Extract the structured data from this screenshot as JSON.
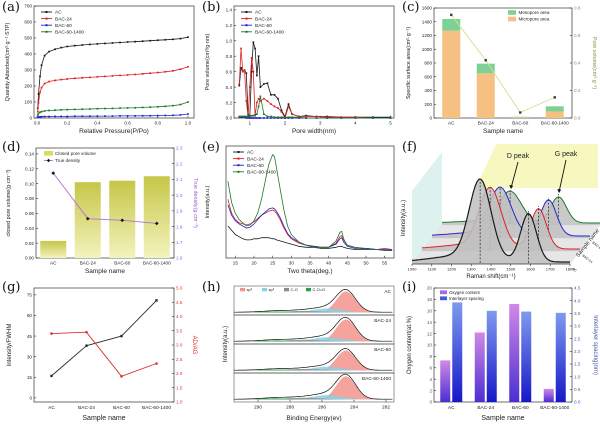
{
  "chart_data": [
    {
      "id": "a",
      "label": "(a)",
      "kind": "line",
      "type": "line",
      "xlabel": "Relative Pressure(P/Po)",
      "ylabel": "Quantity Adsorbed(cm³·g⁻¹·STP)",
      "xlim": [
        -0.02,
        1.04
      ],
      "ylim": [
        0,
        700
      ],
      "xticks": [
        0.0,
        0.2,
        0.4,
        0.6,
        0.8,
        1.0
      ],
      "yticks": [
        0,
        100,
        200,
        300,
        400,
        500,
        600,
        700
      ],
      "xdec": 1,
      "ydec": 0,
      "show_yticks": true,
      "markers": true,
      "layout": {
        "ml": 34,
        "mr": 6
      },
      "x": [
        0.005,
        0.01,
        0.02,
        0.03,
        0.05,
        0.08,
        0.12,
        0.16,
        0.2,
        0.25,
        0.3,
        0.35,
        0.4,
        0.45,
        0.5,
        0.55,
        0.6,
        0.65,
        0.7,
        0.75,
        0.8,
        0.85,
        0.9,
        0.95,
        1.0
      ],
      "series": [
        {
          "name": "AC",
          "color": "#1a1a1a",
          "y": [
            60,
            150,
            260,
            330,
            390,
            415,
            430,
            440,
            447,
            452,
            456,
            460,
            463,
            466,
            469,
            472,
            475,
            477,
            480,
            483,
            486,
            489,
            492,
            496,
            505
          ]
        },
        {
          "name": "BAC-24",
          "color": "#e02020",
          "y": [
            40,
            95,
            160,
            190,
            215,
            228,
            235,
            240,
            244,
            248,
            251,
            254,
            257,
            260,
            263,
            266,
            269,
            272,
            276,
            280,
            284,
            289,
            295,
            305,
            320
          ]
        },
        {
          "name": "BAC-60",
          "color": "#2020cc",
          "y": [
            4,
            6,
            7,
            8,
            9,
            9,
            10,
            10,
            10,
            11,
            11,
            11,
            12,
            12,
            12,
            13,
            13,
            13,
            14,
            14,
            15,
            16,
            17,
            19,
            25
          ]
        },
        {
          "name": "BAC-60-1400",
          "color": "#1a7a2a",
          "y": [
            18,
            28,
            36,
            40,
            44,
            47,
            49,
            51,
            52,
            54,
            55,
            56,
            58,
            59,
            60,
            62,
            63,
            64,
            66,
            68,
            70,
            73,
            77,
            84,
            100
          ]
        }
      ]
    },
    {
      "id": "b",
      "label": "(b)",
      "kind": "line",
      "type": "line",
      "xlabel": "Pore width(nm)",
      "ylabel": "Pore volume(cm³/g·nm)",
      "xlim": [
        0.55,
        5.1
      ],
      "ylim": [
        0,
        1.45
      ],
      "xticks": [
        1,
        2,
        3,
        4,
        5
      ],
      "yticks": [
        0.0,
        0.2,
        0.4,
        0.6,
        0.8,
        1.0,
        1.2,
        1.4
      ],
      "xdec": 0,
      "ydec": 1,
      "show_yticks": true,
      "markers": true,
      "layout": {
        "ml": 34,
        "mr": 6
      },
      "x": [
        0.7,
        0.75,
        0.8,
        0.85,
        0.9,
        0.95,
        1.0,
        1.05,
        1.1,
        1.15,
        1.2,
        1.25,
        1.3,
        1.4,
        1.5,
        1.6,
        1.7,
        1.8,
        1.9,
        2.0,
        2.1,
        2.2,
        2.4,
        2.6,
        2.9,
        3.2,
        3.6,
        4.0,
        4.5,
        5.0
      ],
      "series": [
        {
          "name": "AC",
          "color": "#1a1a1a",
          "y": [
            0.42,
            0.65,
            0.6,
            0.62,
            0.58,
            0.05,
            0.02,
            0.6,
            0.98,
            0.9,
            0.55,
            0.8,
            0.4,
            0.44,
            0.45,
            0.3,
            0.3,
            0.25,
            0.1,
            0.02,
            0.18,
            0.05,
            0.02,
            0.03,
            0.02,
            0.02,
            0.01,
            0.01,
            0.01,
            0.01
          ]
        },
        {
          "name": "BAC-24",
          "color": "#e02020",
          "y": [
            0.44,
            0.9,
            0.6,
            0.62,
            0.22,
            0.02,
            0.4,
            0.78,
            0.6,
            0.03,
            0.2,
            0.25,
            0.22,
            0.25,
            0.22,
            0.18,
            0.15,
            0.13,
            0.08,
            0.0,
            0.15,
            0.05,
            0.02,
            0.02,
            0.02,
            0.01,
            0.01,
            0.01,
            0.0,
            0.0
          ]
        },
        {
          "name": "BAC-60",
          "color": "#2020cc",
          "y": [
            0.01,
            0.01,
            0.01,
            0.01,
            0.0,
            0.0,
            0.0,
            0.0,
            0.0,
            0.0,
            0.0,
            0.0,
            0.0,
            0.0,
            0.0,
            0.0,
            0.0,
            0.0,
            0.0,
            0.0,
            0.0,
            0.0,
            0.0,
            0.0,
            0.0,
            0.0,
            0.0,
            0.0,
            0.0,
            0.0
          ]
        },
        {
          "name": "BAC-60-1400",
          "color": "#1a7a2a",
          "y": [
            0.02,
            0.02,
            0.02,
            0.02,
            0.02,
            0.02,
            0.02,
            0.03,
            0.03,
            0.04,
            0.05,
            0.15,
            0.28,
            0.05,
            0.02,
            0.02,
            0.01,
            0.01,
            0.01,
            0.01,
            0.01,
            0.01,
            0.01,
            0.0,
            0.0,
            0.0,
            0.0,
            0.0,
            0.0,
            0.0
          ]
        }
      ]
    },
    {
      "id": "c",
      "label": "(c)",
      "kind": "bars_stacked",
      "type": "bar",
      "xlabel": "Sample name",
      "ylabel": "Specific surface area(cm²·g⁻¹)",
      "ylabel2": "Pore volume(cm³·g⁻¹)",
      "categories": [
        "AC",
        "BAC-24",
        "BAC-60",
        "BAC-60-1400"
      ],
      "ylim": [
        0,
        1600
      ],
      "yticks": [
        0,
        200,
        400,
        600,
        800,
        1000,
        1200,
        1400,
        1600
      ],
      "ylim2": [
        0,
        0.8
      ],
      "yticks2": [
        0.0,
        0.2,
        0.4,
        0.6,
        0.8
      ],
      "legend": [
        {
          "name": "Mesopore area",
          "color": "#7ed194"
        },
        {
          "name": "Micropore area",
          "color": "#f7c083"
        }
      ],
      "micropore_area": [
        1270,
        650,
        10,
        95
      ],
      "mesopore_area": [
        170,
        140,
        8,
        75
      ],
      "pore_volume": [
        0.75,
        0.42,
        0.04,
        0.15
      ],
      "line_color": "#d6dc96",
      "marker_color": "#3c3c2c",
      "axis2_color": "#8c8c46"
    },
    {
      "id": "d",
      "label": "(d)",
      "kind": "bars_line",
      "type": "bar",
      "xlabel": "Sample name",
      "ylabel": "closed pore volume(g·cm⁻³)",
      "ylabel2": "True density(g·cm⁻³)",
      "categories": [
        "AC",
        "BAC-24",
        "BAC-60",
        "BAC-60-1400"
      ],
      "ylim": [
        0,
        0.148
      ],
      "yticks": [
        0.0,
        0.02,
        0.04,
        0.06,
        0.08,
        0.1,
        0.12,
        0.14
      ],
      "ylim2": [
        1.6,
        2.3
      ],
      "yticks2": [
        1.6,
        1.7,
        1.8,
        1.9,
        2.0,
        2.1,
        2.2,
        2.3
      ],
      "legend": [
        {
          "name": "Closed pore volume",
          "color": "#dada5e"
        },
        {
          "name": "True density",
          "color": "#b070d8"
        }
      ],
      "closed_pore_volume": [
        0.023,
        0.102,
        0.104,
        0.11
      ],
      "true_density": [
        2.14,
        1.85,
        1.84,
        1.82
      ],
      "bar_grad_top": "#c6c649",
      "bar_grad_bottom": "#f3f3bd",
      "line_color": "#b070d8",
      "marker_color": "#111111",
      "axis2_color": "#a05ad0"
    },
    {
      "id": "e",
      "label": "(e)",
      "kind": "line",
      "type": "line",
      "xlabel": "Two theta(deg.)",
      "ylabel": "Intensity(a.u.)",
      "xlim": [
        12.5,
        57.5
      ],
      "ylim": [
        0,
        1.05
      ],
      "xticks": [
        15,
        20,
        25,
        30,
        35,
        40,
        45,
        50,
        55
      ],
      "yticks": [],
      "xdec": 0,
      "ydec": 1,
      "show_yticks": false,
      "markers": false,
      "layout": {
        "ml": 26,
        "mr": 6
      },
      "x": [
        13,
        14,
        15,
        16,
        17,
        18,
        19,
        20,
        21,
        22,
        23,
        24,
        25,
        25.5,
        26,
        27,
        28,
        29,
        30,
        32,
        34,
        36,
        38,
        40,
        42,
        43,
        43.5,
        44,
        45,
        47,
        50,
        53,
        55,
        57
      ],
      "series": [
        {
          "name": "AC",
          "color": "#1a1a1a",
          "y": [
            0.3,
            0.26,
            0.22,
            0.2,
            0.18,
            0.17,
            0.17,
            0.18,
            0.18,
            0.19,
            0.19,
            0.19,
            0.18,
            0.18,
            0.17,
            0.16,
            0.15,
            0.14,
            0.13,
            0.11,
            0.1,
            0.1,
            0.09,
            0.09,
            0.1,
            0.11,
            0.11,
            0.1,
            0.09,
            0.08,
            0.08,
            0.08,
            0.07,
            0.07
          ]
        },
        {
          "name": "BAC-24",
          "color": "#e02020",
          "y": [
            0.55,
            0.42,
            0.36,
            0.33,
            0.32,
            0.31,
            0.32,
            0.34,
            0.37,
            0.4,
            0.42,
            0.44,
            0.45,
            0.44,
            0.42,
            0.36,
            0.28,
            0.22,
            0.18,
            0.14,
            0.12,
            0.11,
            0.1,
            0.1,
            0.14,
            0.2,
            0.21,
            0.17,
            0.12,
            0.1,
            0.09,
            0.08,
            0.09,
            0.08
          ]
        },
        {
          "name": "BAC-60",
          "color": "#2020cc",
          "y": [
            0.5,
            0.4,
            0.35,
            0.32,
            0.3,
            0.28,
            0.29,
            0.32,
            0.36,
            0.4,
            0.43,
            0.46,
            0.47,
            0.46,
            0.44,
            0.38,
            0.3,
            0.23,
            0.19,
            0.15,
            0.12,
            0.11,
            0.1,
            0.1,
            0.13,
            0.18,
            0.19,
            0.15,
            0.11,
            0.09,
            0.09,
            0.08,
            0.08,
            0.08
          ]
        },
        {
          "name": "BAC-60-1400",
          "color": "#1a7a2a",
          "y": [
            0.72,
            0.52,
            0.42,
            0.36,
            0.33,
            0.3,
            0.31,
            0.35,
            0.42,
            0.55,
            0.72,
            0.88,
            0.97,
            0.95,
            0.85,
            0.65,
            0.45,
            0.3,
            0.22,
            0.15,
            0.12,
            0.1,
            0.1,
            0.1,
            0.16,
            0.24,
            0.25,
            0.18,
            0.12,
            0.1,
            0.08,
            0.08,
            0.07,
            0.07
          ]
        }
      ]
    },
    {
      "id": "f",
      "label": "(f)",
      "kind": "waterfall",
      "type": "line",
      "xlabel": "Raman shift(cm⁻¹)",
      "ylabel": "Intensity(a.u.)",
      "depth_label": "Sample name",
      "xlim": [
        1000,
        1800
      ],
      "xticks": [
        1000,
        1100,
        1200,
        1300,
        1400,
        1500,
        1600,
        1700,
        1800
      ],
      "d_center": 1345,
      "g_center": 1590,
      "annotations": [
        "D peak",
        "G peak"
      ],
      "wall_color": "#ddf1ef",
      "panel_color": "#f7f7c0",
      "series": [
        {
          "name": "AC",
          "color": "#1a1a1a",
          "d_height": 78,
          "g_height": 48
        },
        {
          "name": "BAC-24",
          "color": "#e02020",
          "d_height": 58,
          "g_height": 40
        },
        {
          "name": "BAC-60",
          "color": "#2525cc",
          "d_height": 46,
          "g_height": 36
        },
        {
          "name": "BAC-60-1400",
          "color": "#1a7a2a",
          "d_height": 30,
          "g_height": 26
        }
      ]
    },
    {
      "id": "g",
      "label": "(g)",
      "kind": "dualline",
      "type": "line",
      "xlabel": "Sample name",
      "ylabel": "Intensity/FWHM",
      "ylabel2": "AD/AG",
      "categories": [
        "AC",
        "BAC-24",
        "BAC-60",
        "BAC-60-1400"
      ],
      "ylim": [
        -3,
        80
      ],
      "yticks": [
        0,
        15,
        30,
        45,
        60,
        75
      ],
      "ylim2": [
        1.0,
        5.0
      ],
      "yticks2": [
        1.0,
        1.5,
        2.0,
        2.5,
        3.0,
        3.5,
        4.0,
        4.5,
        5.0
      ],
      "series": [
        {
          "name": "Intensity/FWHM",
          "color": "#2a2a2a",
          "axis": "left",
          "y": [
            16,
            38,
            45,
            71
          ]
        },
        {
          "name": "AD/AG",
          "color": "#e03030",
          "axis": "right",
          "y": [
            3.4,
            3.45,
            1.9,
            2.35
          ]
        }
      ],
      "axis2_color": "#e03030"
    },
    {
      "id": "h",
      "label": "(h)",
      "kind": "xps",
      "type": "area",
      "xlabel": "Binding Energy(ev)",
      "ylabel": "Intensity(a.u.)",
      "xlim": [
        291.5,
        281.5
      ],
      "xticks": [
        290,
        288,
        286,
        284,
        282
      ],
      "samples": [
        "AC",
        "BAC-24",
        "BAC-60",
        "BAC-60-1400"
      ],
      "sample_scale": [
        1.0,
        1.05,
        0.95,
        1.1
      ],
      "components": [
        {
          "name": "sp²",
          "color": "#f2938c",
          "center": 284.5,
          "sigma": 0.6,
          "height": 21
        },
        {
          "name": "sp³",
          "color": "#86d2e8",
          "center": 285.7,
          "sigma": 0.9,
          "height": 4
        },
        {
          "name": "C-O",
          "color": "#8a8a8a",
          "center": 287.2,
          "sigma": 1.1,
          "height": 1.6
        },
        {
          "name": "C-O=O",
          "color": "#27a24b",
          "center": 289.0,
          "sigma": 0.9,
          "height": 1.1
        }
      ]
    },
    {
      "id": "i",
      "label": "(i)",
      "kind": "groupbars",
      "type": "bar",
      "xlabel": "Sample name",
      "ylabel": "Oxygen content(at.%)",
      "ylabel2": "Interlayer spacing(nm)",
      "categories": [
        "AC",
        "BAC-24",
        "BAC-60",
        "BAC-60-1400"
      ],
      "ylim": [
        0,
        20
      ],
      "yticks": [
        0,
        2,
        4,
        6,
        8,
        10,
        12,
        14,
        16,
        18,
        20
      ],
      "ylim2": [
        0,
        4.5
      ],
      "yticks2": [
        0.0,
        0.5,
        1.0,
        1.5,
        2.0,
        2.5,
        3.0,
        3.5,
        4.0,
        4.5
      ],
      "legend": [
        {
          "name": "Oxygen content",
          "color": "#a86ae0"
        },
        {
          "name": "Interlayer spacing",
          "color": "#4a5ae0"
        }
      ],
      "oxygen_content": [
        7.3,
        12.2,
        17.2,
        2.3
      ],
      "interlayer_spacing": [
        3.93,
        3.6,
        3.57,
        3.52
      ],
      "ox_grad_top": "#d189e6",
      "ox_grad_bottom": "#4b2ed2",
      "in_grad_top": "#7e9bee",
      "in_grad_bottom": "#1717c8",
      "axis2_color": "#4a5aa8"
    }
  ]
}
